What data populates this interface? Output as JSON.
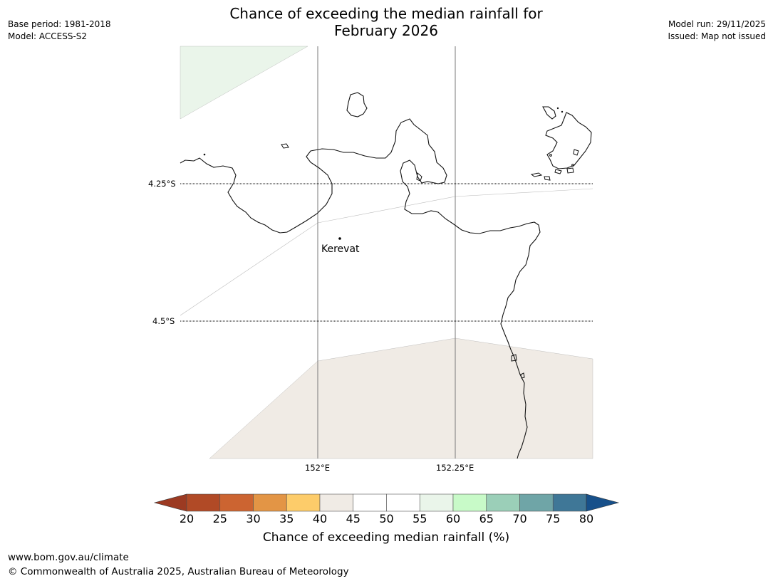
{
  "header": {
    "title_line1": "Chance of exceeding the median rainfall for",
    "title_line2": "February 2026",
    "base_period": "Base period: 1981-2018",
    "model": "Model: ACCESS-S2",
    "model_run": "Model run: 29/11/2025",
    "issued": "Issued: Map not issued"
  },
  "map": {
    "latitude_labels": [
      "4.25°S",
      "4.5°S"
    ],
    "longitude_labels": [
      "152°E",
      "152.25°E"
    ],
    "places": [
      {
        "name": "Kerevat",
        "lon": 152.04,
        "lat": -4.35
      }
    ],
    "region_colors": {
      "band_55_60": "#eaf5ea",
      "band_40_45": "#f0ebe5"
    }
  },
  "colorbar": {
    "title": "Chance of exceeding median rainfall (%)",
    "ticks": [
      "20",
      "25",
      "30",
      "35",
      "40",
      "45",
      "50",
      "55",
      "60",
      "65",
      "70",
      "75",
      "80"
    ],
    "under_color": "#9c3a22",
    "over_color": "#17508a",
    "colors": [
      "#b14a26",
      "#cc6431",
      "#e39545",
      "#fdcc6a",
      "#f0ebe5",
      "#ffffff",
      "#ffffff",
      "#eaf5ea",
      "#c8fac8",
      "#9bcfb8",
      "#6fa5a7",
      "#3f7797"
    ]
  },
  "footer": {
    "url": "www.bom.gov.au/climate",
    "copyright": "© Commonwealth of Australia 2025, Australian Bureau of Meteorology"
  }
}
